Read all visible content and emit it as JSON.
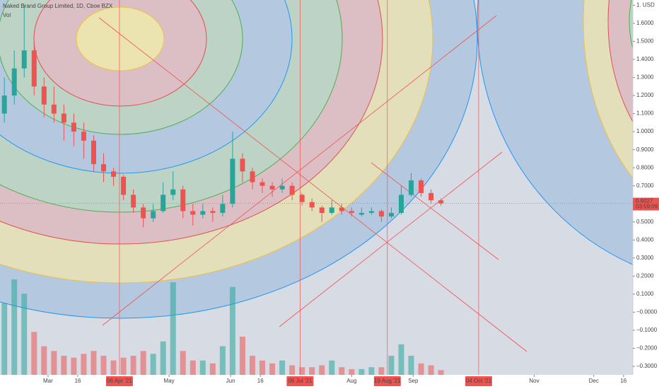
{
  "header": {
    "title": "Naked Brand Group Limited, 1D, Cboe BZX",
    "volume_label": "Vol"
  },
  "chart_data": {
    "type": "candlestick",
    "x": [
      38,
      43,
      48,
      53,
      58,
      63,
      68,
      73,
      78,
      83,
      88,
      93,
      98,
      103,
      108,
      113,
      118,
      123,
      128,
      133,
      138,
      143,
      148,
      153,
      158,
      163,
      168,
      173,
      178,
      183,
      188,
      193,
      198,
      203,
      208,
      213,
      218,
      223,
      228,
      233,
      238,
      243,
      248,
      253,
      258
    ],
    "open": [
      1.1,
      1.2,
      1.35,
      1.45,
      1.25,
      1.15,
      1.1,
      1.05,
      1.0,
      0.95,
      0.82,
      0.78,
      0.75,
      0.65,
      0.58,
      0.52,
      0.56,
      0.65,
      0.68,
      0.56,
      0.54,
      0.56,
      0.55,
      0.6,
      0.85,
      0.78,
      0.72,
      0.7,
      0.68,
      0.7,
      0.65,
      0.61,
      0.58,
      0.55,
      0.58,
      0.56,
      0.54,
      0.55,
      0.56,
      0.53,
      0.55,
      0.65,
      0.73,
      0.66,
      0.62
    ],
    "high": [
      1.3,
      1.45,
      1.7,
      1.5,
      1.3,
      1.25,
      1.15,
      1.1,
      1.05,
      0.98,
      0.88,
      0.8,
      0.76,
      0.68,
      0.6,
      0.6,
      0.72,
      0.78,
      0.7,
      0.6,
      0.6,
      0.58,
      0.65,
      1.0,
      0.88,
      0.8,
      0.74,
      0.72,
      0.74,
      0.72,
      0.66,
      0.63,
      0.59,
      0.62,
      0.6,
      0.58,
      0.58,
      0.58,
      0.57,
      0.58,
      0.7,
      0.77,
      0.74,
      0.68,
      0.63
    ],
    "low": [
      1.05,
      1.15,
      1.3,
      1.2,
      1.08,
      1.05,
      0.95,
      0.92,
      0.85,
      0.78,
      0.72,
      0.7,
      0.62,
      0.55,
      0.47,
      0.5,
      0.55,
      0.62,
      0.52,
      0.48,
      0.52,
      0.5,
      0.53,
      0.58,
      0.72,
      0.68,
      0.66,
      0.64,
      0.66,
      0.62,
      0.59,
      0.56,
      0.5,
      0.54,
      0.54,
      0.53,
      0.53,
      0.54,
      0.5,
      0.52,
      0.54,
      0.64,
      0.64,
      0.6,
      0.59
    ],
    "close": [
      1.2,
      1.35,
      1.45,
      1.25,
      1.15,
      1.1,
      1.05,
      1.0,
      0.95,
      0.82,
      0.78,
      0.75,
      0.65,
      0.58,
      0.52,
      0.56,
      0.65,
      0.68,
      0.56,
      0.54,
      0.56,
      0.55,
      0.6,
      0.85,
      0.78,
      0.72,
      0.7,
      0.68,
      0.7,
      0.65,
      0.61,
      0.58,
      0.55,
      0.58,
      0.56,
      0.55,
      0.55,
      0.56,
      0.53,
      0.55,
      0.65,
      0.73,
      0.66,
      0.62,
      0.6027
    ],
    "volume": [
      75,
      100,
      85,
      45,
      30,
      25,
      20,
      18,
      22,
      25,
      20,
      15,
      18,
      20,
      25,
      22,
      35,
      97,
      25,
      15,
      15,
      12,
      30,
      92,
      40,
      20,
      15,
      12,
      15,
      10,
      8,
      8,
      10,
      15,
      8,
      6,
      6,
      8,
      8,
      20,
      32,
      20,
      12,
      10,
      5
    ],
    "volume_ylim": [
      0,
      100
    ],
    "up_color": "#26a69a",
    "down_color": "#ef5350",
    "countdown": "03:59:09",
    "xlim": [
      35.8,
      354.7
    ],
    "ylim": [
      -0.347,
      1.729
    ],
    "xticks": [
      {
        "value": 60,
        "label": "Mar"
      },
      {
        "value": 75,
        "label": "16"
      },
      {
        "value": 96,
        "label": "06 Apr '21",
        "highlight": true
      },
      {
        "value": 121,
        "label": "May"
      },
      {
        "value": 152,
        "label": "Jun"
      },
      {
        "value": 167,
        "label": "16"
      },
      {
        "value": 187,
        "label": "06 Jul '21",
        "highlight": true
      },
      {
        "value": 213,
        "label": "Aug"
      },
      {
        "value": 231,
        "label": "19 Aug '21",
        "highlight": true
      },
      {
        "value": 244,
        "label": "Sep"
      },
      {
        "value": 277,
        "label": "04 Oct '21",
        "highlight": true
      },
      {
        "value": 305,
        "label": "Nov"
      },
      {
        "value": 335,
        "label": "Dec"
      },
      {
        "value": 350,
        "label": "16"
      }
    ],
    "yticks": [
      {
        "value": 1.7,
        "label": "1. USD"
      },
      {
        "value": 1.6,
        "label": "1.6000"
      },
      {
        "value": 1.5,
        "label": "1.5000"
      },
      {
        "value": 1.4,
        "label": "1.4000"
      },
      {
        "value": 1.3,
        "label": "1.3000"
      },
      {
        "value": 1.2,
        "label": "1.2000"
      },
      {
        "value": 1.1,
        "label": "1.1000"
      },
      {
        "value": 1.0,
        "label": "1.0000"
      },
      {
        "value": 0.9,
        "label": "0.9000"
      },
      {
        "value": 0.8,
        "label": "0.8000"
      },
      {
        "value": 0.7,
        "label": "0.7000"
      },
      {
        "value": 0.5,
        "label": "0.5000"
      },
      {
        "value": 0.4,
        "label": "0.4000"
      },
      {
        "value": 0.3,
        "label": "0.3000"
      },
      {
        "value": 0.2,
        "label": "0.2000"
      },
      {
        "value": 0.1,
        "label": "0.1000"
      },
      {
        "value": 0.0,
        "label": "−0.0000"
      },
      {
        "value": -0.1,
        "label": "−0.1000"
      },
      {
        "value": -0.2,
        "label": "−0.2000"
      },
      {
        "value": -0.3,
        "label": "−0.3000"
      }
    ]
  }
}
